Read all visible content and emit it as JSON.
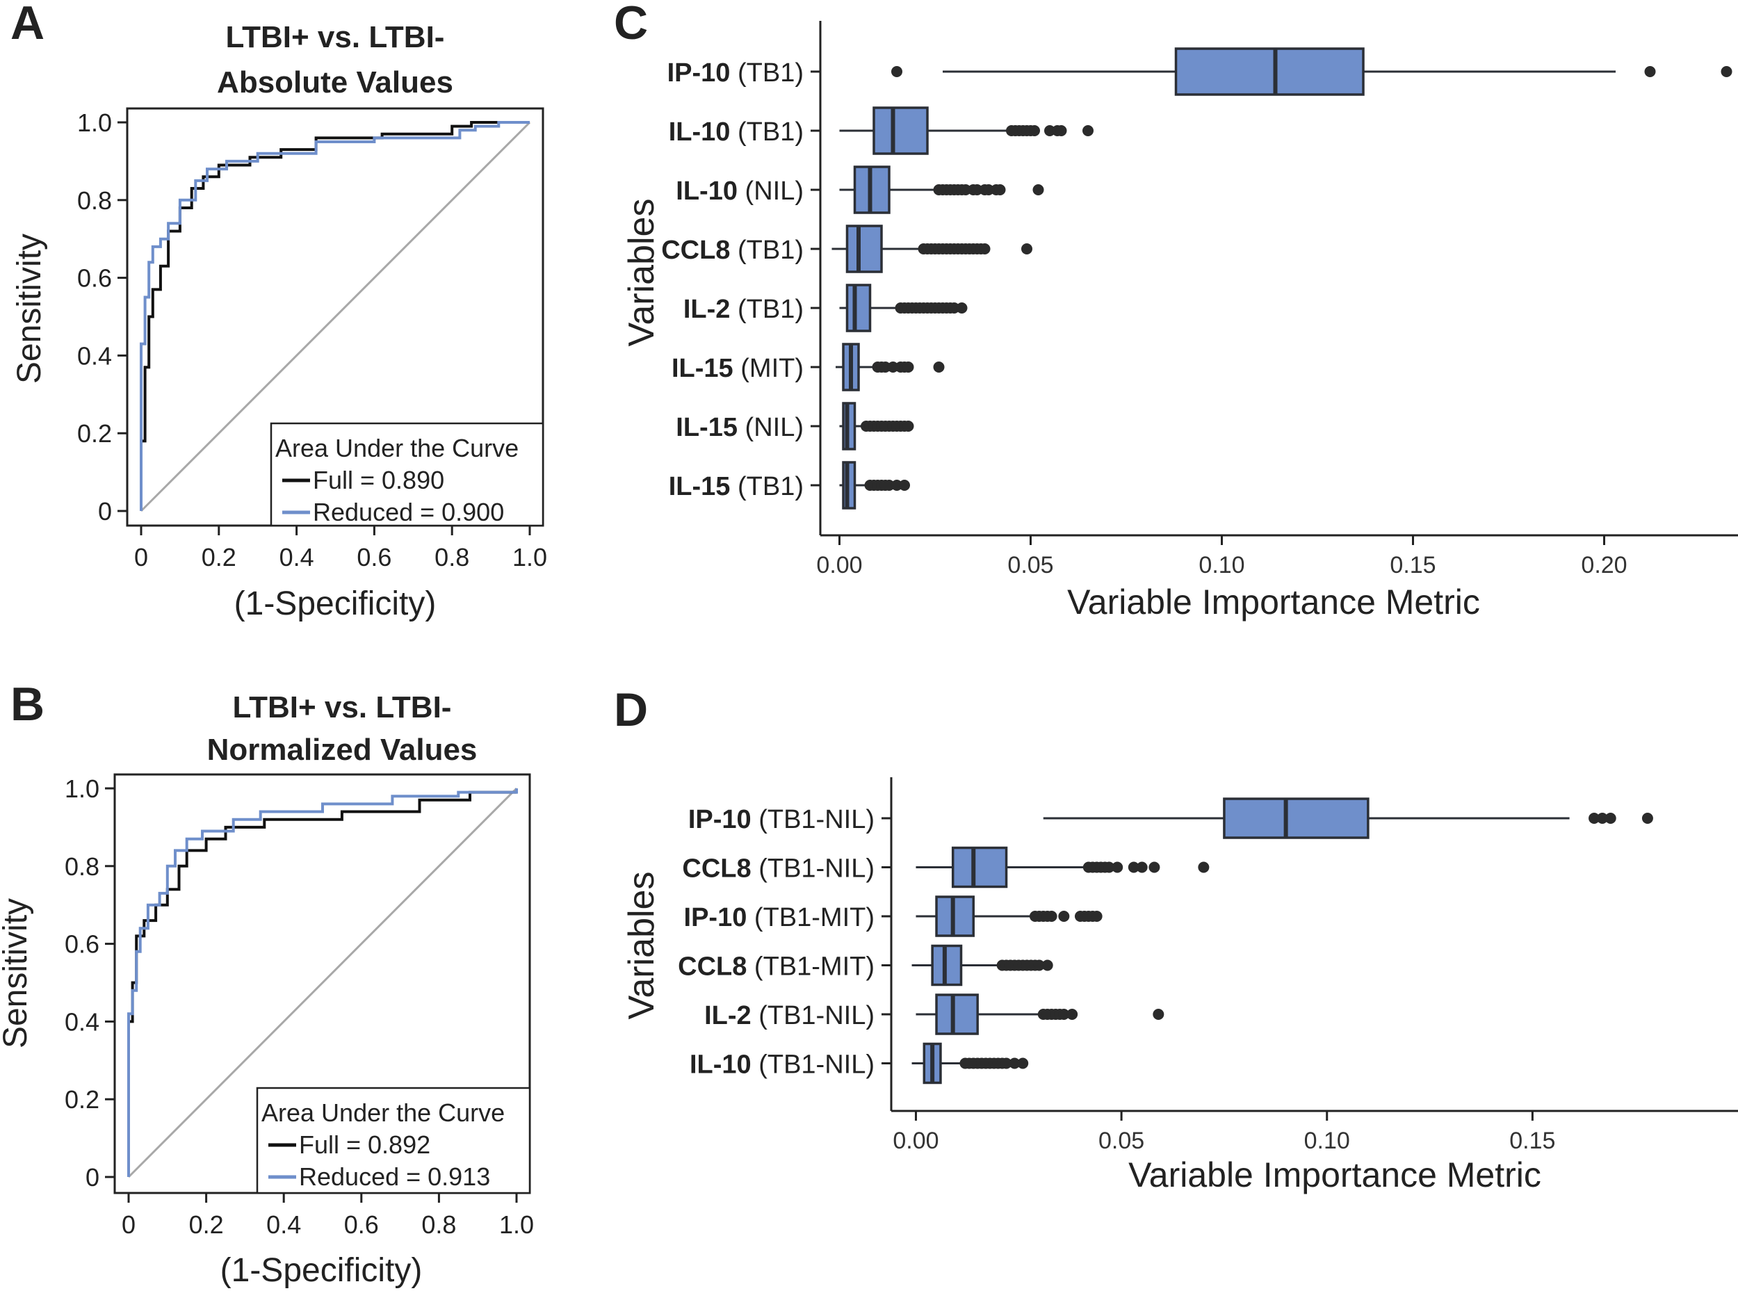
{
  "colors": {
    "full": "#111111",
    "reduced": "#6f8fcb",
    "diagonal": "#a8a8a8",
    "box_fill": "#6f8fcb",
    "box_stroke": "#2b2f36",
    "axis": "#222222"
  },
  "chart_data": [
    {
      "panel": "A",
      "type": "line",
      "title_line1": "LTBI+ vs. LTBI-",
      "title_line2": "Absolute Values",
      "xlabel": "(1-Specificity)",
      "ylabel": "Sensitivity",
      "xlim": [
        0,
        1
      ],
      "ylim": [
        0,
        1
      ],
      "x_ticks": [
        "0",
        "0.2",
        "0.4",
        "0.6",
        "0.8",
        "1.0"
      ],
      "y_ticks": [
        "0",
        "0.2",
        "0.4",
        "0.6",
        "0.8",
        "1.0"
      ],
      "grid": false,
      "legend": {
        "title": "Area Under the Curve",
        "position": "bottom-right",
        "entries": [
          {
            "key": "full",
            "label": "Full = 0.890"
          },
          {
            "key": "reduced",
            "label": "Reduced = 0.900"
          }
        ]
      },
      "series": [
        {
          "key": "full",
          "name": "Full = 0.890",
          "x": [
            0,
            0,
            0.01,
            0.01,
            0.02,
            0.02,
            0.03,
            0.03,
            0.05,
            0.05,
            0.07,
            0.07,
            0.1,
            0.1,
            0.13,
            0.13,
            0.16,
            0.16,
            0.2,
            0.2,
            0.28,
            0.28,
            0.36,
            0.36,
            0.45,
            0.45,
            0.62,
            0.62,
            0.8,
            0.8,
            0.85,
            0.85,
            0.9,
            0.9,
            1
          ],
          "y": [
            0,
            0.18,
            0.18,
            0.37,
            0.37,
            0.5,
            0.5,
            0.57,
            0.57,
            0.63,
            0.63,
            0.72,
            0.72,
            0.78,
            0.78,
            0.83,
            0.83,
            0.86,
            0.86,
            0.89,
            0.89,
            0.91,
            0.91,
            0.93,
            0.93,
            0.96,
            0.96,
            0.97,
            0.97,
            0.99,
            0.99,
            1,
            1,
            1,
            1
          ]
        },
        {
          "key": "reduced",
          "name": "Reduced = 0.900",
          "x": [
            0,
            0,
            0.01,
            0.01,
            0.02,
            0.02,
            0.03,
            0.03,
            0.05,
            0.05,
            0.07,
            0.07,
            0.1,
            0.1,
            0.14,
            0.14,
            0.17,
            0.17,
            0.22,
            0.22,
            0.3,
            0.3,
            0.45,
            0.45,
            0.6,
            0.6,
            0.82,
            0.82,
            0.86,
            0.86,
            0.92,
            0.92,
            1
          ],
          "y": [
            0,
            0.43,
            0.43,
            0.55,
            0.55,
            0.64,
            0.64,
            0.68,
            0.68,
            0.7,
            0.7,
            0.74,
            0.74,
            0.8,
            0.8,
            0.85,
            0.85,
            0.88,
            0.88,
            0.9,
            0.9,
            0.92,
            0.92,
            0.95,
            0.95,
            0.96,
            0.96,
            0.98,
            0.98,
            0.99,
            0.99,
            1,
            1
          ]
        }
      ]
    },
    {
      "panel": "B",
      "type": "line",
      "title_line1": "LTBI+ vs. LTBI-",
      "title_line2": "Normalized Values",
      "xlabel": "(1-Specificity)",
      "ylabel": "Sensitivity",
      "xlim": [
        0,
        1
      ],
      "ylim": [
        0,
        1
      ],
      "x_ticks": [
        "0",
        "0.2",
        "0.4",
        "0.6",
        "0.8",
        "1.0"
      ],
      "y_ticks": [
        "0",
        "0.2",
        "0.4",
        "0.6",
        "0.8",
        "1.0"
      ],
      "grid": false,
      "legend": {
        "title": "Area Under the Curve",
        "position": "bottom-right",
        "entries": [
          {
            "key": "full",
            "label": "Full = 0.892"
          },
          {
            "key": "reduced",
            "label": "Reduced = 0.913"
          }
        ]
      },
      "series": [
        {
          "key": "full",
          "name": "Full = 0.892",
          "x": [
            0,
            0,
            0.01,
            0.01,
            0.02,
            0.02,
            0.04,
            0.04,
            0.07,
            0.07,
            0.1,
            0.1,
            0.13,
            0.13,
            0.15,
            0.15,
            0.2,
            0.2,
            0.25,
            0.25,
            0.35,
            0.35,
            0.55,
            0.55,
            0.75,
            0.75,
            0.88,
            0.88,
            1
          ],
          "y": [
            0,
            0.4,
            0.4,
            0.5,
            0.5,
            0.62,
            0.62,
            0.66,
            0.66,
            0.7,
            0.7,
            0.74,
            0.74,
            0.8,
            0.8,
            0.84,
            0.84,
            0.87,
            0.87,
            0.9,
            0.9,
            0.92,
            0.92,
            0.94,
            0.94,
            0.97,
            0.97,
            0.99,
            0.99
          ]
        },
        {
          "key": "reduced",
          "name": "Reduced = 0.913",
          "x": [
            0,
            0,
            0.01,
            0.01,
            0.02,
            0.02,
            0.03,
            0.03,
            0.05,
            0.05,
            0.08,
            0.08,
            0.1,
            0.1,
            0.12,
            0.12,
            0.15,
            0.15,
            0.19,
            0.19,
            0.27,
            0.27,
            0.34,
            0.34,
            0.5,
            0.5,
            0.68,
            0.68,
            0.85,
            0.85,
            1,
            1
          ],
          "y": [
            0,
            0.42,
            0.42,
            0.48,
            0.48,
            0.58,
            0.58,
            0.64,
            0.64,
            0.7,
            0.7,
            0.73,
            0.73,
            0.8,
            0.8,
            0.84,
            0.84,
            0.87,
            0.87,
            0.89,
            0.89,
            0.92,
            0.92,
            0.94,
            0.94,
            0.96,
            0.96,
            0.98,
            0.98,
            0.99,
            0.99,
            1
          ]
        }
      ]
    },
    {
      "panel": "C",
      "type": "box",
      "xlabel": "Variable Importance Metric",
      "ylabel": "Variables",
      "xlim": [
        -0.005,
        0.235
      ],
      "x_ticks": [
        0,
        0.05,
        0.1,
        0.15,
        0.2
      ],
      "x_tick_labels": [
        "0.00",
        "0.05",
        "0.10",
        "0.15",
        "0.20"
      ],
      "grid": false,
      "variables": [
        {
          "name": "IP-10",
          "cond": "(TB1)",
          "wlo": 0.027,
          "q1": 0.088,
          "med": 0.114,
          "q3": 0.137,
          "whi": 0.203,
          "out": [
            0.015,
            0.212,
            0.232
          ]
        },
        {
          "name": "IL-10",
          "cond": "(TB1)",
          "wlo": 0.0,
          "q1": 0.009,
          "med": 0.014,
          "q3": 0.023,
          "whi": 0.044,
          "out": [
            0.045,
            0.046,
            0.047,
            0.048,
            0.049,
            0.05,
            0.051,
            0.055,
            0.057,
            0.058,
            0.065
          ]
        },
        {
          "name": "IL-10",
          "cond": "(NIL)",
          "wlo": 0.0,
          "q1": 0.004,
          "med": 0.008,
          "q3": 0.013,
          "whi": 0.025,
          "out": [
            0.026,
            0.027,
            0.028,
            0.029,
            0.03,
            0.031,
            0.032,
            0.033,
            0.035,
            0.036,
            0.038,
            0.039,
            0.041,
            0.042,
            0.052
          ]
        },
        {
          "name": "CCL8",
          "cond": "(TB1)",
          "wlo": -0.002,
          "q1": 0.002,
          "med": 0.005,
          "q3": 0.011,
          "whi": 0.021,
          "out": [
            0.022,
            0.023,
            0.024,
            0.025,
            0.026,
            0.027,
            0.028,
            0.029,
            0.03,
            0.031,
            0.032,
            0.033,
            0.034,
            0.035,
            0.036,
            0.037,
            0.038,
            0.049
          ]
        },
        {
          "name": "IL-2",
          "cond": "(TB1)",
          "wlo": 0.0,
          "q1": 0.002,
          "med": 0.004,
          "q3": 0.008,
          "whi": 0.015,
          "out": [
            0.016,
            0.017,
            0.018,
            0.019,
            0.02,
            0.021,
            0.022,
            0.023,
            0.024,
            0.025,
            0.026,
            0.027,
            0.028,
            0.029,
            0.03,
            0.032
          ]
        },
        {
          "name": "IL-15",
          "cond": "(MIT)",
          "wlo": -0.001,
          "q1": 0.001,
          "med": 0.003,
          "q3": 0.005,
          "whi": 0.009,
          "out": [
            0.01,
            0.011,
            0.012,
            0.014,
            0.016,
            0.017,
            0.018,
            0.026
          ]
        },
        {
          "name": "IL-15",
          "cond": "(NIL)",
          "wlo": 0.0,
          "q1": 0.001,
          "med": 0.002,
          "q3": 0.004,
          "whi": 0.007,
          "out": [
            0.007,
            0.008,
            0.009,
            0.01,
            0.011,
            0.012,
            0.013,
            0.014,
            0.015,
            0.016,
            0.017,
            0.018
          ]
        },
        {
          "name": "IL-15",
          "cond": "(TB1)",
          "wlo": 0.0,
          "q1": 0.001,
          "med": 0.002,
          "q3": 0.004,
          "whi": 0.007,
          "out": [
            0.008,
            0.009,
            0.01,
            0.011,
            0.012,
            0.013,
            0.015,
            0.017
          ]
        }
      ]
    },
    {
      "panel": "D",
      "type": "box",
      "xlabel": "Variable Importance Metric",
      "ylabel": "Variables",
      "xlim": [
        -0.006,
        0.2
      ],
      "x_ticks": [
        0,
        0.05,
        0.1,
        0.15
      ],
      "x_tick_labels": [
        "0.00",
        "0.05",
        "0.10",
        "0.15"
      ],
      "grid": false,
      "variables": [
        {
          "name": "IP-10",
          "cond": "(TB1-NIL)",
          "wlo": 0.031,
          "q1": 0.075,
          "med": 0.09,
          "q3": 0.11,
          "whi": 0.159,
          "out": [
            0.165,
            0.167,
            0.169,
            0.178
          ]
        },
        {
          "name": "CCL8",
          "cond": "(TB1-NIL)",
          "wlo": 0.0,
          "q1": 0.009,
          "med": 0.014,
          "q3": 0.022,
          "whi": 0.041,
          "out": [
            0.042,
            0.043,
            0.044,
            0.045,
            0.046,
            0.047,
            0.049,
            0.053,
            0.055,
            0.058,
            0.07
          ]
        },
        {
          "name": "IP-10",
          "cond": "(TB1-MIT)",
          "wlo": 0.0,
          "q1": 0.005,
          "med": 0.009,
          "q3": 0.014,
          "whi": 0.028,
          "out": [
            0.029,
            0.03,
            0.031,
            0.032,
            0.033,
            0.036,
            0.04,
            0.041,
            0.042,
            0.043,
            0.044
          ]
        },
        {
          "name": "CCL8",
          "cond": "(TB1-MIT)",
          "wlo": -0.001,
          "q1": 0.004,
          "med": 0.007,
          "q3": 0.011,
          "whi": 0.02,
          "out": [
            0.021,
            0.022,
            0.023,
            0.024,
            0.025,
            0.026,
            0.027,
            0.028,
            0.029,
            0.03,
            0.032
          ]
        },
        {
          "name": "IL-2",
          "cond": "(TB1-NIL)",
          "wlo": 0.0,
          "q1": 0.005,
          "med": 0.009,
          "q3": 0.015,
          "whi": 0.03,
          "out": [
            0.031,
            0.032,
            0.033,
            0.034,
            0.035,
            0.036,
            0.038,
            0.059
          ]
        },
        {
          "name": "IL-10",
          "cond": "(TB1-NIL)",
          "wlo": -0.001,
          "q1": 0.002,
          "med": 0.004,
          "q3": 0.006,
          "whi": 0.011,
          "out": [
            0.012,
            0.013,
            0.014,
            0.015,
            0.016,
            0.017,
            0.018,
            0.019,
            0.02,
            0.021,
            0.022,
            0.024,
            0.026
          ]
        }
      ]
    }
  ]
}
